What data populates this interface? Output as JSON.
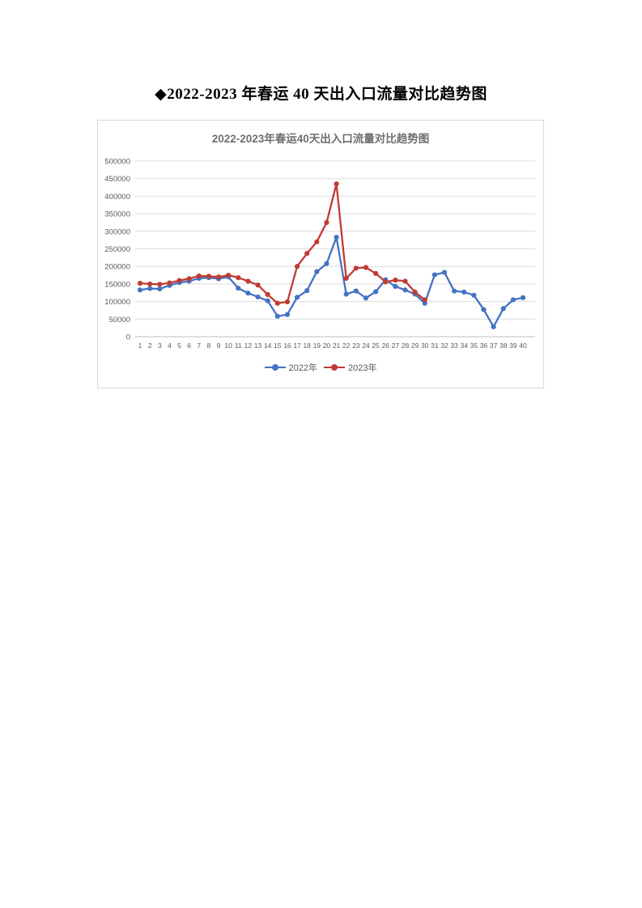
{
  "page": {
    "title": "◆2022-2023 年春运 40 天出入口流量对比趋势图"
  },
  "chart": {
    "panel_border_color": "#d8d8d8",
    "grid_color": "#dcdcdc",
    "axis_color": "#bfbfbf",
    "text_color": "#595959"
  },
  "chart_data": {
    "type": "line",
    "title": "2022-2023年春运40天出入口流量对比趋势图",
    "x": [
      1,
      2,
      3,
      4,
      5,
      6,
      7,
      8,
      9,
      10,
      11,
      12,
      13,
      14,
      15,
      16,
      17,
      18,
      19,
      20,
      21,
      22,
      23,
      24,
      25,
      26,
      27,
      28,
      29,
      30,
      31,
      32,
      33,
      34,
      35,
      36,
      37,
      38,
      39,
      40
    ],
    "series": [
      {
        "name": "2022年",
        "color": "#4472C4",
        "values": [
          133000,
          137000,
          136000,
          146000,
          154000,
          158000,
          166000,
          168000,
          165000,
          170000,
          138000,
          124000,
          113000,
          102000,
          58000,
          63000,
          112000,
          131000,
          185000,
          208000,
          283000,
          121000,
          130000,
          110000,
          128000,
          162000,
          143000,
          133000,
          121000,
          95000,
          176000,
          183000,
          130000,
          127000,
          118000,
          77000,
          28000,
          80000,
          105000,
          111000
        ]
      },
      {
        "name": "2023年",
        "color": "#C13B33",
        "values": [
          152000,
          150000,
          149000,
          153000,
          160000,
          165000,
          173000,
          172000,
          170000,
          175000,
          168000,
          158000,
          147000,
          120000,
          95000,
          99000,
          200000,
          237000,
          270000,
          325000,
          435000,
          166000,
          195000,
          197000,
          180000,
          156000,
          161000,
          158000,
          127000,
          105000
        ]
      }
    ],
    "ylim": [
      0,
      500000
    ],
    "ytick_step": 50000,
    "xlabel": "",
    "ylabel": "",
    "grid": true,
    "legend_position": "bottom"
  }
}
